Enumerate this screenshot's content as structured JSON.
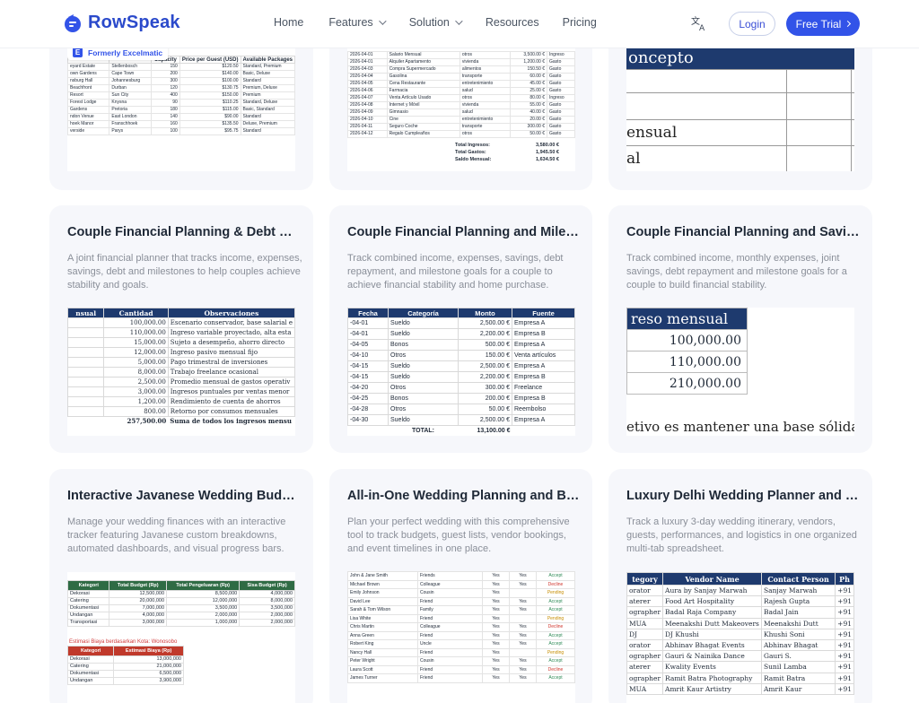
{
  "nav": {
    "brand": "RowSpeak",
    "links": [
      {
        "label": "Home"
      },
      {
        "label": "Features"
      },
      {
        "label": "Solution"
      },
      {
        "label": "Resources"
      },
      {
        "label": "Pricing"
      }
    ],
    "login": "Login",
    "trial": "Free Trial",
    "lang_icon": "translate-icon"
  },
  "top_cards": [
    {
      "badge": "Formerly Excelmatic",
      "headers": [
        "",
        "Capacity",
        "Price per Guest (USD)",
        "Available Packages"
      ],
      "rows": [
        [
          "eyard Estate",
          "Stellenbosch",
          "150",
          "$120.50",
          "Standard, Premium"
        ],
        [
          "own Gardens",
          "Cape Town",
          "200",
          "$140.00",
          "Basic, Deluxe"
        ],
        [
          "nsburg Hall",
          "Johannesburg",
          "300",
          "$100.00",
          "Standard"
        ],
        [
          "Beachfront",
          "Durban",
          "120",
          "$130.75",
          "Premium, Deluxe"
        ],
        [
          "Resort",
          "Sun City",
          "400",
          "$150.00",
          "Premium"
        ],
        [
          "Forest Lodge",
          "Knysna",
          "90",
          "$110.25",
          "Standard, Deluxe"
        ],
        [
          "Gardens",
          "Pretoria",
          "180",
          "$115.00",
          "Basic, Standard"
        ],
        [
          "ndon Venue",
          "East London",
          "140",
          "$90.00",
          "Standard"
        ],
        [
          "hoek Manor",
          "Franschhoek",
          "160",
          "$135.50",
          "Deluxe, Premium"
        ],
        [
          "verside",
          "Parys",
          "100",
          "$95.75",
          "Standard"
        ]
      ]
    },
    {
      "rows": [
        [
          "2026-04-01",
          "Salario Mensual",
          "otros",
          "3,500.00 €",
          "Ingreso"
        ],
        [
          "2026-04-01",
          "Alquiler Apartamento",
          "vivienda",
          "1,200.00 €",
          "Gasto"
        ],
        [
          "2026-04-03",
          "Compra Supermercado",
          "alimentos",
          "150.50 €",
          "Gasto"
        ],
        [
          "2026-04-04",
          "Gasolina",
          "transporte",
          "60.00 €",
          "Gasto"
        ],
        [
          "2026-04-05",
          "Cena Restaurante",
          "entretenimiento",
          "45.00 €",
          "Gasto"
        ],
        [
          "2026-04-06",
          "Farmacia",
          "salud",
          "25.00 €",
          "Gasto"
        ],
        [
          "2026-04-07",
          "Venta Artículo Usado",
          "otros",
          "80.00 €",
          "Ingreso"
        ],
        [
          "2026-04-08",
          "Internet y Móvil",
          "vivienda",
          "55.00 €",
          "Gasto"
        ],
        [
          "2026-04-09",
          "Gimnasio",
          "salud",
          "40.00 €",
          "Gasto"
        ],
        [
          "2026-04-10",
          "Cine",
          "entretenimiento",
          "20.00 €",
          "Gasto"
        ],
        [
          "2026-04-11",
          "Seguro Coche",
          "transporte",
          "300.00 €",
          "Gasto"
        ],
        [
          "2026-04-12",
          "Regalo Cumpleaños",
          "otros",
          "50.00 €",
          "Gasto"
        ]
      ],
      "summary": [
        {
          "label": "Total Ingresos:",
          "value": "3,580.00 €"
        },
        {
          "label": "Total Gastos:",
          "value": "1,945.50 €"
        },
        {
          "label": "Saldo Mensual:",
          "value": "1,634.50 €"
        }
      ]
    },
    {
      "header": "oncepto",
      "lines": [
        "ensual",
        "al"
      ]
    }
  ],
  "mid_cards": [
    {
      "title": "Couple Financial Planning & Debt Management",
      "desc": "A joint financial planner that tracks income, expenses, savings, debt and milestones to help couples achieve stability and goals.",
      "headers": [
        "nsual",
        "Cantidad",
        "Observaciones"
      ],
      "rows": [
        [
          "",
          "100,000.00",
          "Escenario conservador, base salarial e"
        ],
        [
          "",
          "110,000.00",
          "Ingreso variable proyectado, alta esta"
        ],
        [
          "",
          "15,000.00",
          "Sujeto a desempeño, ahorro directo"
        ],
        [
          "",
          "12,000.00",
          "Ingreso pasivo mensual fijo"
        ],
        [
          "",
          "5,000.00",
          "Pago trimestral de inversiones"
        ],
        [
          "",
          "8,000.00",
          "Trabajo freelance ocasional"
        ],
        [
          "",
          "2,500.00",
          "Promedio mensual de gastos operativ"
        ],
        [
          "",
          "3,000.00",
          "Ingresos puntuales por ventas menor"
        ],
        [
          "",
          "1,200.00",
          "Rendimiento de cuenta de ahorros"
        ],
        [
          "",
          "800.00",
          "Retorno por consumos mensuales"
        ]
      ],
      "total": [
        "",
        "257,500.00",
        "Suma de todos los ingresos mensu"
      ]
    },
    {
      "title": "Couple Financial Planning and Milestone Tracker",
      "desc": "Track combined income, expenses, savings, debt repayment, and milestone goals for a couple to achieve financial stability and home purchase.",
      "headers": [
        "Fecha",
        "Categoría",
        "Monto",
        "Fuente"
      ],
      "rows": [
        [
          "-04-01",
          "Sueldo",
          "2,500.00 €",
          "Empresa A"
        ],
        [
          "-04-01",
          "Sueldo",
          "2,200.00 €",
          "Empresa B"
        ],
        [
          "-04-05",
          "Bonos",
          "500.00 €",
          "Empresa A"
        ],
        [
          "-04-10",
          "Otros",
          "150.00 €",
          "Venta artículos"
        ],
        [
          "-04-15",
          "Sueldo",
          "2,500.00 €",
          "Empresa A"
        ],
        [
          "-04-15",
          "Sueldo",
          "2,200.00 €",
          "Empresa B"
        ],
        [
          "-04-20",
          "Otros",
          "300.00 €",
          "Freelance"
        ],
        [
          "-04-25",
          "Bonos",
          "200.00 €",
          "Empresa B"
        ],
        [
          "-04-28",
          "Otros",
          "50.00 €",
          "Reembolso"
        ],
        [
          "-04-30",
          "Sueldo",
          "2,500.00 €",
          "Empresa A"
        ]
      ],
      "total": [
        "",
        "TOTAL:",
        "13,100.00 €",
        ""
      ]
    },
    {
      "title": "Couple Financial Planning and Savings Tracker",
      "desc": "Track combined income, monthly expenses, joint savings, debt repayment and milestone goals for a couple to build financial stability.",
      "header": "reso mensual",
      "values": [
        "100,000.00",
        "110,000.00",
        "210,000.00"
      ],
      "footer": "etivo es mantener una base sólida d"
    }
  ],
  "bottom_cards": [
    {
      "title": "Interactive Javanese Wedding Budget Tracker",
      "desc": "Manage your wedding finances with an interactive tracker featuring Javanese custom breakdowns, automated dashboards, and visual progress bars.",
      "headers": [
        "Kategori",
        "Total Budget (Rp)",
        "Total Pengeluaran (Rp)",
        "Sisa Budget (Rp)"
      ],
      "rows": [
        [
          "Dekorasi",
          "12,500,000",
          "8,500,000",
          "4,000,000"
        ],
        [
          "Catering",
          "20,000,000",
          "12,000,000",
          "8,000,000"
        ],
        [
          "Dokumentasi",
          "7,000,000",
          "3,500,000",
          "3,500,000"
        ],
        [
          "Undangan",
          "4,000,000",
          "2,000,000",
          "2,000,000"
        ],
        [
          "Transportasi",
          "3,000,000",
          "1,000,000",
          "2,000,000"
        ]
      ],
      "sub_title": "Estimasi Biaya berdasarkan Kota: Wonosobo",
      "sub_headers": [
        "Kategori",
        "Estimasi Biaya (Rp)"
      ],
      "sub_rows": [
        [
          "Dekorasi",
          "13,000,000"
        ],
        [
          "Catering",
          "21,000,000"
        ],
        [
          "Dokumentasi",
          "6,500,000"
        ],
        [
          "Undangan",
          "3,900,000"
        ]
      ]
    },
    {
      "title": "All-in-One Wedding Planning and Budget Tracker",
      "desc": "Plan your perfect wedding with this comprehensive tool to track budgets, guest lists, vendor bookings, and event timelines in one place.",
      "rows": [
        [
          "John & Jane Smith",
          "Friends",
          "Yes",
          "Yes",
          "Accept"
        ],
        [
          "Michael Brown",
          "Colleague",
          "Yes",
          "Yes",
          "Decline"
        ],
        [
          "Emily Johnson",
          "Cousin",
          "Yes",
          "",
          "Pending"
        ],
        [
          "David Lee",
          "Friend",
          "Yes",
          "Yes",
          "Accept"
        ],
        [
          "Sarah & Tom Wilson",
          "Family",
          "Yes",
          "Yes",
          "Accept"
        ],
        [
          "Lisa White",
          "Friend",
          "Yes",
          "",
          "Pending"
        ],
        [
          "Chris Martin",
          "Colleague",
          "Yes",
          "Yes",
          "Decline"
        ],
        [
          "Anna Green",
          "Friend",
          "Yes",
          "Yes",
          "Accept"
        ],
        [
          "Robert King",
          "Uncle",
          "Yes",
          "Yes",
          "Accept"
        ],
        [
          "Nancy Hall",
          "Friend",
          "Yes",
          "",
          "Pending"
        ],
        [
          "Peter Wright",
          "Cousin",
          "Yes",
          "Yes",
          "Accept"
        ],
        [
          "Laura Scott",
          "Friend",
          "Yes",
          "Yes",
          "Decline"
        ],
        [
          "James Turner",
          "Friend",
          "Yes",
          "Yes",
          "Accept"
        ]
      ]
    },
    {
      "title": "Luxury Delhi Wedding Planner and Vendor Tracker",
      "desc": "Track a luxury 3-day wedding itinerary, vendors, guests, performances, and logistics in one organized multi-tab spreadsheet.",
      "headers": [
        "tegory",
        "Vendor Name",
        "Contact Person",
        "Ph"
      ],
      "rows": [
        [
          "orator",
          "Aura by Sanjay Marwah",
          "Sanjay Marwah",
          "+91"
        ],
        [
          "aterer",
          "Food Art Hospitality",
          "Rajesh Gupta",
          "+91"
        ],
        [
          "ographer",
          "Badal Raja Company",
          "Badal Jain",
          "+91"
        ],
        [
          "MUA",
          "Meenakshi Dutt Makeovers",
          "Meenakshi Dutt",
          "+91"
        ],
        [
          "DJ",
          "DJ Khushi",
          "Khushi Soni",
          "+91"
        ],
        [
          "orator",
          "Abhinav Bhagat Events",
          "Abhinav Bhagat",
          "+91"
        ],
        [
          "ographer",
          "Gauri & Nainika Dance",
          "Gauri S.",
          "+91"
        ],
        [
          "aterer",
          "Kwality Events",
          "Sunil Lamba",
          "+91"
        ],
        [
          "ographer",
          "Ramit Batra Photography",
          "Ramit Batra",
          "+91"
        ],
        [
          "MUA",
          "Amrit Kaur Artistry",
          "Amrit Kaur",
          "+91"
        ]
      ]
    }
  ]
}
